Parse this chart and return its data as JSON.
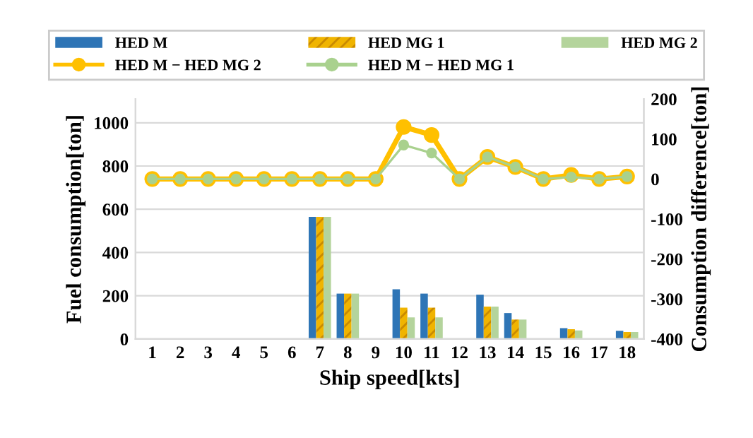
{
  "chart_data": {
    "type": "bar",
    "xlabel": "Ship speed[kts]",
    "ylabel": "Fuel consumption[ton]",
    "y2label": "Consumption difference[ton]",
    "categories": [
      "1",
      "2",
      "3",
      "4",
      "5",
      "6",
      "7",
      "8",
      "9",
      "10",
      "11",
      "12",
      "13",
      "14",
      "15",
      "16",
      "17",
      "18"
    ],
    "series": [
      {
        "name": "HED M",
        "color": "#2e75b6",
        "values": [
          0,
          0,
          0,
          0,
          0,
          0,
          565,
          210,
          0,
          230,
          210,
          0,
          205,
          120,
          0,
          50,
          0,
          38
        ]
      },
      {
        "name": "HED MG 1",
        "color": "#f0b400",
        "values": [
          0,
          0,
          0,
          0,
          0,
          0,
          565,
          210,
          0,
          145,
          145,
          0,
          150,
          90,
          0,
          45,
          0,
          32
        ]
      },
      {
        "name": "HED MG 2",
        "color": "#b4d49c",
        "values": [
          0,
          0,
          0,
          0,
          0,
          0,
          565,
          210,
          0,
          100,
          100,
          0,
          150,
          90,
          0,
          40,
          0,
          32
        ]
      },
      {
        "name": "HED M − HED MG 2",
        "type": "line",
        "axis": "y2",
        "color": "#ffc000",
        "values": [
          0,
          0,
          0,
          0,
          0,
          0,
          0,
          0,
          0,
          130,
          110,
          0,
          55,
          30,
          0,
          10,
          0,
          6
        ]
      },
      {
        "name": "HED M − HED MG 1",
        "type": "line",
        "axis": "y2",
        "color": "#a9d18e",
        "values": [
          0,
          0,
          0,
          0,
          0,
          0,
          0,
          0,
          0,
          85,
          65,
          0,
          55,
          30,
          0,
          5,
          0,
          6
        ]
      }
    ],
    "ylim": [
      0,
      1110
    ],
    "yticks": [
      0,
      200,
      400,
      600,
      800,
      1000
    ],
    "y2lim": [
      -400,
      200
    ],
    "y2ticks": [
      -400,
      -300,
      -200,
      -100,
      0,
      100,
      200
    ],
    "grid": "y",
    "legend": "top",
    "marker": "circle",
    "line_style": "solid"
  }
}
